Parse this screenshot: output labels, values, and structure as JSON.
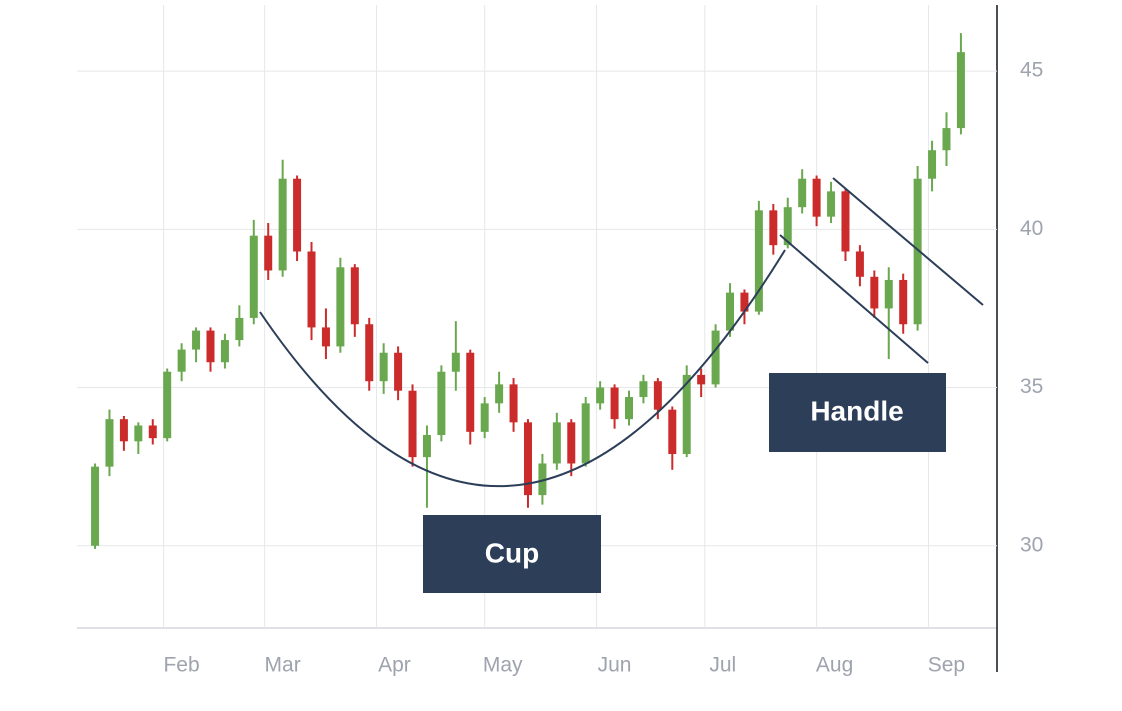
{
  "chart_data": {
    "type": "candlestick",
    "x": [
      13,
      17,
      21,
      25,
      29,
      33,
      37,
      41,
      45,
      49,
      53,
      57,
      61,
      65,
      69,
      73,
      77,
      81,
      85,
      89,
      93,
      97,
      101,
      105,
      109,
      113,
      117,
      121,
      125,
      129,
      133,
      137,
      141,
      145,
      149,
      153,
      157,
      161,
      165,
      169,
      173,
      177,
      181,
      185,
      189,
      193,
      197,
      201,
      205,
      209,
      213,
      217,
      221,
      225,
      229,
      233,
      237,
      241,
      245,
      249,
      253
    ],
    "open": [
      30.0,
      32.5,
      34.0,
      33.3,
      33.8,
      33.4,
      35.5,
      36.2,
      36.8,
      35.8,
      36.5,
      37.2,
      39.8,
      38.7,
      41.6,
      39.3,
      36.9,
      36.3,
      38.8,
      37.0,
      35.2,
      36.1,
      34.9,
      32.8,
      33.5,
      35.5,
      36.1,
      33.6,
      34.5,
      35.1,
      33.9,
      31.6,
      32.6,
      33.9,
      32.6,
      34.5,
      35.0,
      34.0,
      34.7,
      35.2,
      34.3,
      32.9,
      35.4,
      35.1,
      36.8,
      38.0,
      37.4,
      40.6,
      39.5,
      40.7,
      41.6,
      40.4,
      41.2,
      39.3,
      38.5,
      37.5,
      38.4,
      37.0,
      41.6,
      42.5,
      43.2
    ],
    "high": [
      32.6,
      34.3,
      34.1,
      33.9,
      34.0,
      35.6,
      36.4,
      36.9,
      36.9,
      36.7,
      37.6,
      40.3,
      40.2,
      42.2,
      41.7,
      39.6,
      37.5,
      39.1,
      38.9,
      37.2,
      36.4,
      36.3,
      35.1,
      33.8,
      35.7,
      37.1,
      36.2,
      34.7,
      35.5,
      35.3,
      34.0,
      32.9,
      34.2,
      34.0,
      34.7,
      35.2,
      35.1,
      34.9,
      35.4,
      35.3,
      34.4,
      35.7,
      35.6,
      37.0,
      38.3,
      38.1,
      40.9,
      40.8,
      41.0,
      41.9,
      41.7,
      41.5,
      41.3,
      39.5,
      38.7,
      38.8,
      38.6,
      42.0,
      42.8,
      43.7,
      46.2
    ],
    "low": [
      29.9,
      32.2,
      33.0,
      32.9,
      33.2,
      33.3,
      35.2,
      35.8,
      35.5,
      35.6,
      36.3,
      37.0,
      38.4,
      38.5,
      39.0,
      36.5,
      35.9,
      36.1,
      36.6,
      34.9,
      34.8,
      34.6,
      32.5,
      31.2,
      33.3,
      34.9,
      33.2,
      33.4,
      34.2,
      33.6,
      31.2,
      31.3,
      32.4,
      32.2,
      32.5,
      34.3,
      33.7,
      33.8,
      34.5,
      34.0,
      32.4,
      32.8,
      34.7,
      35.0,
      36.6,
      37.0,
      37.3,
      39.2,
      39.4,
      40.5,
      40.1,
      40.2,
      39.0,
      38.2,
      37.2,
      35.9,
      36.7,
      36.8,
      41.2,
      42.0,
      43.0
    ],
    "close": [
      32.5,
      34.0,
      33.3,
      33.8,
      33.4,
      35.5,
      36.2,
      36.8,
      35.8,
      36.5,
      37.2,
      39.8,
      38.7,
      41.6,
      39.3,
      36.9,
      36.3,
      38.8,
      37.0,
      35.2,
      36.1,
      34.9,
      32.8,
      33.5,
      35.5,
      36.1,
      33.6,
      34.5,
      35.1,
      33.9,
      31.6,
      32.6,
      33.9,
      32.6,
      34.5,
      35.0,
      34.0,
      34.7,
      35.2,
      34.3,
      32.9,
      35.4,
      35.1,
      36.8,
      38.0,
      37.4,
      40.6,
      39.5,
      40.7,
      41.6,
      40.4,
      41.2,
      39.3,
      38.5,
      37.5,
      38.4,
      37.0,
      41.6,
      42.5,
      43.2,
      45.6
    ],
    "up_color": "#6aa84f",
    "down_color": "#cc2b2b",
    "xlim": [
      8,
      263
    ],
    "xticks": [
      {
        "value": 32,
        "label": "Feb"
      },
      {
        "value": 60,
        "label": "Mar"
      },
      {
        "value": 91,
        "label": "Apr"
      },
      {
        "value": 121,
        "label": "May"
      },
      {
        "value": 152,
        "label": "Jun"
      },
      {
        "value": 182,
        "label": "Jul"
      },
      {
        "value": 213,
        "label": "Aug"
      },
      {
        "value": 244,
        "label": "Sep"
      }
    ],
    "ylim": [
      27.4,
      46.3
    ],
    "yticks": [
      30,
      35,
      40,
      45
    ],
    "grid": true,
    "annotations": [
      "Cup",
      "Handle"
    ]
  }
}
